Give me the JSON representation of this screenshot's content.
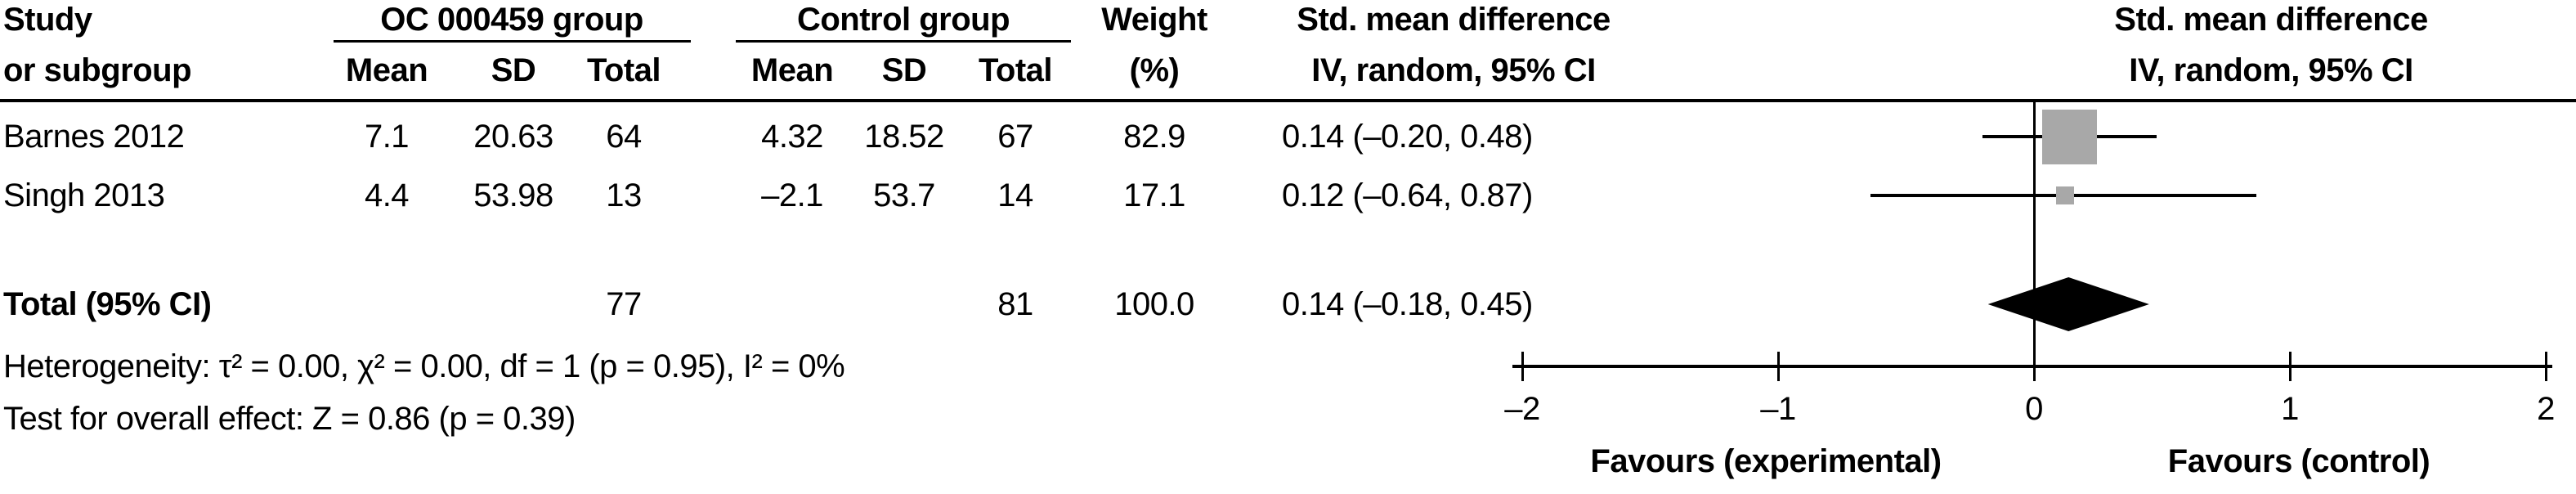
{
  "table": {
    "col1": {
      "line1": "Study",
      "line2": "or subgroup"
    },
    "group1": {
      "header": "OC 000459 group",
      "mean": "Mean",
      "sd": "SD",
      "total": "Total"
    },
    "group2": {
      "header": "Control group",
      "mean": "Mean",
      "sd": "SD",
      "total": "Total"
    },
    "weight": {
      "line1": "Weight",
      "line2": "(%)"
    },
    "smd": {
      "line1": "Std. mean difference",
      "line2": "IV, random, 95% CI"
    }
  },
  "studies": [
    {
      "name": "Barnes 2012",
      "mean_t": "7.1",
      "sd_t": "20.63",
      "total_t": "64",
      "mean_c": "4.32",
      "sd_c": "18.52",
      "total_c": "67",
      "weight": "82.9",
      "smd_ci": "0.14 (–0.20, 0.48)"
    },
    {
      "name": "Singh 2013",
      "mean_t": "4.4",
      "sd_t": "53.98",
      "total_t": "13",
      "mean_c": "–2.1",
      "sd_c": "53.7",
      "total_c": "14",
      "weight": "17.1",
      "smd_ci": "0.12 (–0.64, 0.87)"
    }
  ],
  "total_row": {
    "label": "Total (95% CI)",
    "total_t": "77",
    "total_c": "81",
    "weight": "100.0",
    "smd_ci": "0.14 (–0.18, 0.45)"
  },
  "footnotes": {
    "heterogeneity": "Heterogeneity: τ² = 0.00, χ² = 0.00, df = 1 (p = 0.95), I² = 0%",
    "overall": "Test for overall effect: Z = 0.86 (p = 0.39)"
  },
  "plot_header": {
    "line1": "Std. mean difference",
    "line2": "IV, random, 95% CI"
  },
  "colors": {
    "marker": "#a8a8a8",
    "diamond": "#000000",
    "line": "#000000"
  },
  "chart_data": {
    "type": "forest",
    "effect_label": "Std. mean difference",
    "model": "IV, random, 95% CI",
    "xlim": [
      -2,
      2
    ],
    "x_ticks": [
      -2,
      -1,
      0,
      1,
      2
    ],
    "tick_labels": [
      "–2",
      "–1",
      "0",
      "1",
      "2"
    ],
    "studies": [
      {
        "label": "Barnes 2012",
        "smd": 0.14,
        "ci_low": -0.2,
        "ci_high": 0.48,
        "weight_pct": 82.9
      },
      {
        "label": "Singh 2013",
        "smd": 0.12,
        "ci_low": -0.64,
        "ci_high": 0.87,
        "weight_pct": 17.1
      }
    ],
    "total": {
      "label": "Total (95% CI)",
      "smd": 0.14,
      "ci_low": -0.18,
      "ci_high": 0.45,
      "weight_pct": 100.0
    },
    "favours_left": "Favours (experimental)",
    "favours_right": "Favours (control)",
    "heterogeneity": {
      "tau2": 0.0,
      "chi2": 0.0,
      "df": 1,
      "p": 0.95,
      "I2_pct": 0
    },
    "overall_effect": {
      "Z": 0.86,
      "p": 0.39
    }
  }
}
